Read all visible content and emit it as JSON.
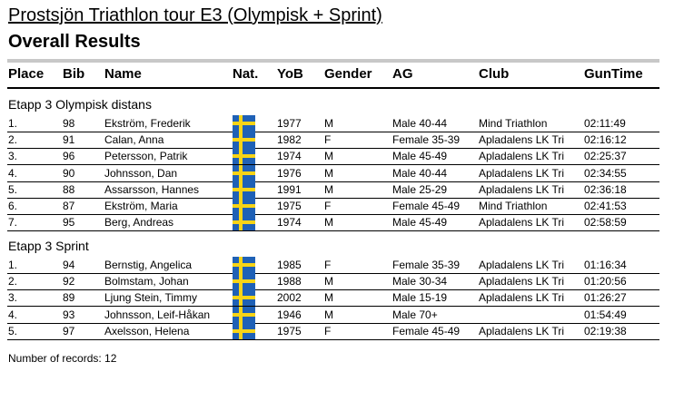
{
  "title": "Prostsjön Triathlon tour E3 (Olympisk + Sprint)",
  "subtitle": "Overall Results",
  "columns": {
    "place": "Place",
    "bib": "Bib",
    "name": "Name",
    "nat": "Nat.",
    "yob": "YoB",
    "gender": "Gender",
    "ag": "AG",
    "club": "Club",
    "guntime": "GunTime"
  },
  "sections": [
    {
      "title": "Etapp 3 Olympisk distans",
      "rows": [
        {
          "place": "1.",
          "bib": "98",
          "name": "Ekström, Frederik",
          "nat": "sweden-flag-icon",
          "yob": "1977",
          "gender": "M",
          "ag": "Male 40-44",
          "club": "Mind Triathlon",
          "guntime": "02:11:49"
        },
        {
          "place": "2.",
          "bib": "91",
          "name": "Calan, Anna",
          "nat": "sweden-flag-icon",
          "yob": "1982",
          "gender": "F",
          "ag": "Female 35-39",
          "club": "Apladalens LK Tri",
          "guntime": "02:16:12"
        },
        {
          "place": "3.",
          "bib": "96",
          "name": "Petersson, Patrik",
          "nat": "sweden-flag-icon",
          "yob": "1974",
          "gender": "M",
          "ag": "Male 45-49",
          "club": "Apladalens LK Tri",
          "guntime": "02:25:37"
        },
        {
          "place": "4.",
          "bib": "90",
          "name": "Johnsson, Dan",
          "nat": "sweden-flag-icon",
          "yob": "1976",
          "gender": "M",
          "ag": "Male 40-44",
          "club": "Apladalens LK Tri",
          "guntime": "02:34:55"
        },
        {
          "place": "5.",
          "bib": "88",
          "name": "Assarsson, Hannes",
          "nat": "sweden-flag-icon",
          "yob": "1991",
          "gender": "M",
          "ag": "Male 25-29",
          "club": "Apladalens LK Tri",
          "guntime": "02:36:18"
        },
        {
          "place": "6.",
          "bib": "87",
          "name": "Ekström, Maria",
          "nat": "sweden-flag-icon",
          "yob": "1975",
          "gender": "F",
          "ag": "Female 45-49",
          "club": "Mind Triathlon",
          "guntime": "02:41:53"
        },
        {
          "place": "7.",
          "bib": "95",
          "name": "Berg, Andreas",
          "nat": "sweden-flag-icon",
          "yob": "1974",
          "gender": "M",
          "ag": "Male 45-49",
          "club": "Apladalens LK Tri",
          "guntime": "02:58:59"
        }
      ]
    },
    {
      "title": "Etapp 3 Sprint",
      "rows": [
        {
          "place": "1.",
          "bib": "94",
          "name": "Bernstig, Angelica",
          "nat": "sweden-flag-icon",
          "yob": "1985",
          "gender": "F",
          "ag": "Female 35-39",
          "club": "Apladalens LK Tri",
          "guntime": "01:16:34"
        },
        {
          "place": "2.",
          "bib": "92",
          "name": "Bolmstam, Johan",
          "nat": "sweden-flag-icon",
          "yob": "1988",
          "gender": "M",
          "ag": "Male 30-34",
          "club": "Apladalens LK Tri",
          "guntime": "01:20:56"
        },
        {
          "place": "3.",
          "bib": "89",
          "name": "Ljung Stein, Timmy",
          "nat": "sweden-flag-icon",
          "yob": "2002",
          "gender": "M",
          "ag": "Male 15-19",
          "club": "Apladalens LK Tri",
          "guntime": "01:26:27"
        },
        {
          "place": "4.",
          "bib": "93",
          "name": "Johnsson, Leif-Håkan",
          "nat": "sweden-flag-icon",
          "yob": "1946",
          "gender": "M",
          "ag": "Male 70+",
          "club": "",
          "guntime": "01:54:49"
        },
        {
          "place": "5.",
          "bib": "97",
          "name": "Axelsson, Helena",
          "nat": "sweden-flag-icon",
          "yob": "1975",
          "gender": "F",
          "ag": "Female 45-49",
          "club": "Apladalens LK Tri",
          "guntime": "02:19:38"
        }
      ]
    }
  ],
  "footer": "Number of records: 12",
  "colors": {
    "flag_blue": "#1f61b6",
    "flag_yellow": "#f7d417",
    "rule_gray": "#c8c8c8"
  }
}
